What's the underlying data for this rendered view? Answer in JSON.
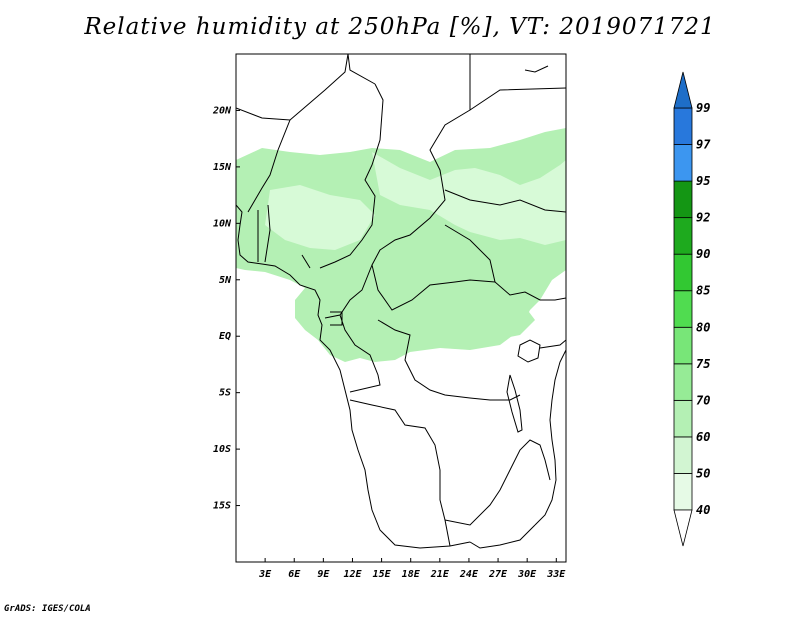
{
  "title": "Relative humidity at 250hPa [%], VT: 2019071721",
  "credit": "GrADS: IGES/COLA",
  "map": {
    "lon_range": [
      0,
      34
    ],
    "lat_range": [
      -20,
      25
    ],
    "lat_ticks": [
      {
        "value": 20,
        "label": "20N"
      },
      {
        "value": 15,
        "label": "15N"
      },
      {
        "value": 10,
        "label": "10N"
      },
      {
        "value": 5,
        "label": "5N"
      },
      {
        "value": 0,
        "label": "EQ"
      },
      {
        "value": -5,
        "label": "5S"
      },
      {
        "value": -10,
        "label": "10S"
      },
      {
        "value": -15,
        "label": "15S"
      }
    ],
    "lon_ticks": [
      {
        "value": 3,
        "label": "3E"
      },
      {
        "value": 6,
        "label": "6E"
      },
      {
        "value": 9,
        "label": "9E"
      },
      {
        "value": 12,
        "label": "12E"
      },
      {
        "value": 15,
        "label": "15E"
      },
      {
        "value": 18,
        "label": "18E"
      },
      {
        "value": 21,
        "label": "21E"
      },
      {
        "value": 24,
        "label": "24E"
      },
      {
        "value": 27,
        "label": "27E"
      },
      {
        "value": 30,
        "label": "30E"
      },
      {
        "value": 33,
        "label": "33E"
      }
    ],
    "field_color_main": "#b4f0b4",
    "field_color_light": "#d7fad7"
  },
  "colorbar": {
    "levels": [
      {
        "label": "40",
        "color": "#e6fae6"
      },
      {
        "label": "50",
        "color": "#d2f5d2"
      },
      {
        "label": "60",
        "color": "#b4f0b4"
      },
      {
        "label": "70",
        "color": "#96eb96"
      },
      {
        "label": "75",
        "color": "#78e678"
      },
      {
        "label": "80",
        "color": "#50dc50"
      },
      {
        "label": "85",
        "color": "#32c832"
      },
      {
        "label": "90",
        "color": "#1eaa1e"
      },
      {
        "label": "92",
        "color": "#149614"
      },
      {
        "label": "95",
        "color": "#3c96f0"
      },
      {
        "label": "97",
        "color": "#2878dc"
      },
      {
        "label": "99",
        "color": "#1e6ec8"
      }
    ],
    "under_color": "#ffffff",
    "over_color": "#1e6ec8"
  }
}
